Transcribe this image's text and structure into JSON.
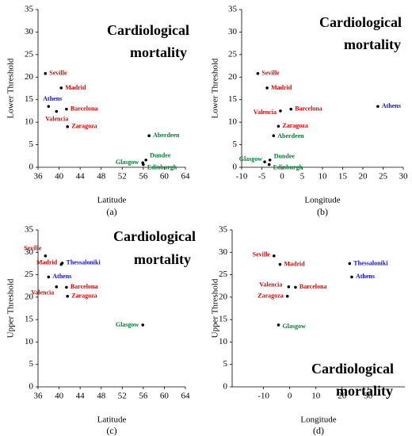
{
  "chart_data": [
    {
      "type": "scatter",
      "title": [
        "Cardiological",
        "mortality"
      ],
      "caption": "(a)",
      "xlabel": "Latitude",
      "ylabel": "Lower Threshold",
      "xlim": [
        36,
        64
      ],
      "xticks": [
        36,
        40,
        44,
        48,
        52,
        56,
        60,
        64
      ],
      "ylim": [
        0,
        35
      ],
      "yticks": [
        0,
        5,
        10,
        15,
        20,
        25,
        30,
        35
      ],
      "labels": [
        "Seville",
        "Madrid",
        "Athens",
        "Barcelona",
        "Valencia",
        "Zaragoza",
        "Aberdeen",
        "Dundee",
        "Glasgow",
        "Edinburgh"
      ],
      "x": [
        37.4,
        40.4,
        38,
        41.4,
        39.5,
        41.6,
        57.1,
        56.5,
        55.9,
        56
      ],
      "values": [
        20.8,
        17.6,
        13.5,
        12.9,
        12.4,
        9,
        7,
        1.6,
        1.0,
        0.6
      ],
      "colors": [
        "#e00000",
        "#e00000",
        "#1010d0",
        "#e00000",
        "#e00000",
        "#e00000",
        "#0a7a3a",
        "#0a7a3a",
        "#0a7a3a",
        "#0a7a3a"
      ]
    },
    {
      "type": "scatter",
      "title": [
        "Cardiological",
        "mortality"
      ],
      "caption": "(b)",
      "xlabel": "Longitude",
      "ylabel": "Lower Threshold",
      "xlim": [
        -10,
        30
      ],
      "xticks": [
        -10,
        -5,
        0,
        5,
        10,
        15,
        20,
        25,
        30
      ],
      "ylim": [
        0,
        35
      ],
      "yticks": [
        0,
        5,
        10,
        15,
        20,
        25,
        30,
        35
      ],
      "labels": [
        "Seville",
        "Madrid",
        "Barcelona",
        "Valencia",
        "Athens",
        "Zaragoza",
        "Aberdeen",
        "Glasgow",
        "Dundee",
        "Edinburgh"
      ],
      "x": [
        -6,
        -3.7,
        2.2,
        -0.4,
        23.7,
        -0.9,
        -2.1,
        -4.3,
        -3,
        -3.2
      ],
      "values": [
        20.8,
        17.6,
        12.9,
        12.5,
        13.5,
        9.1,
        7,
        1.2,
        1.6,
        0.6
      ],
      "colors": [
        "#e00000",
        "#e00000",
        "#e00000",
        "#e00000",
        "#1010d0",
        "#e00000",
        "#0a7a3a",
        "#0a7a3a",
        "#0a7a3a",
        "#0a7a3a"
      ]
    },
    {
      "type": "scatter",
      "title": [
        "Cardiological",
        "mortality"
      ],
      "caption": "(c)",
      "xlabel": "Latitude",
      "ylabel": "Upper Threshold",
      "xlim": [
        36,
        64
      ],
      "xticks": [
        36,
        40,
        44,
        48,
        52,
        56,
        60,
        64
      ],
      "ylim": [
        0,
        35
      ],
      "yticks": [
        0,
        5,
        10,
        15,
        20,
        25,
        30,
        35
      ],
      "labels": [
        "Seville",
        "Madrid",
        "Thessaloniki",
        "Athens",
        "Barcelona",
        "Valencia",
        "Zaragoza",
        "Glasgow"
      ],
      "x": [
        37.4,
        40.4,
        40.6,
        38,
        41.4,
        39.5,
        41.6,
        55.9
      ],
      "values": [
        29.2,
        27.3,
        27.6,
        24.5,
        22.2,
        22.3,
        20.2,
        13.8
      ],
      "colors": [
        "#e00000",
        "#e00000",
        "#1010d0",
        "#1010d0",
        "#e00000",
        "#e00000",
        "#e00000",
        "#0a7a3a"
      ]
    },
    {
      "type": "scatter",
      "title": [
        "Cardiological",
        "mortality"
      ],
      "caption": "(d)",
      "xlabel": "Longitude",
      "ylabel": "Upper Threshold",
      "xlim": [
        -22,
        44
      ],
      "xticks": [
        -10,
        0,
        10,
        20,
        30
      ],
      "ylim": [
        0,
        35
      ],
      "yticks": [
        0,
        5,
        10,
        15,
        20,
        25,
        30,
        35
      ],
      "labels": [
        "Seville",
        "Madrid",
        "Thessaloniki",
        "Athens",
        "Valencia",
        "Barcelona",
        "Zaragoza",
        "Glasgow"
      ],
      "x": [
        -6,
        -3.7,
        22.9,
        23.7,
        -0.4,
        2.2,
        -0.9,
        -4.3
      ],
      "values": [
        29.2,
        27.3,
        27.5,
        24.5,
        22.3,
        22.2,
        20.2,
        13.8
      ],
      "colors": [
        "#e00000",
        "#e00000",
        "#1010d0",
        "#1010d0",
        "#e00000",
        "#e00000",
        "#e00000",
        "#0a7a3a"
      ]
    }
  ]
}
